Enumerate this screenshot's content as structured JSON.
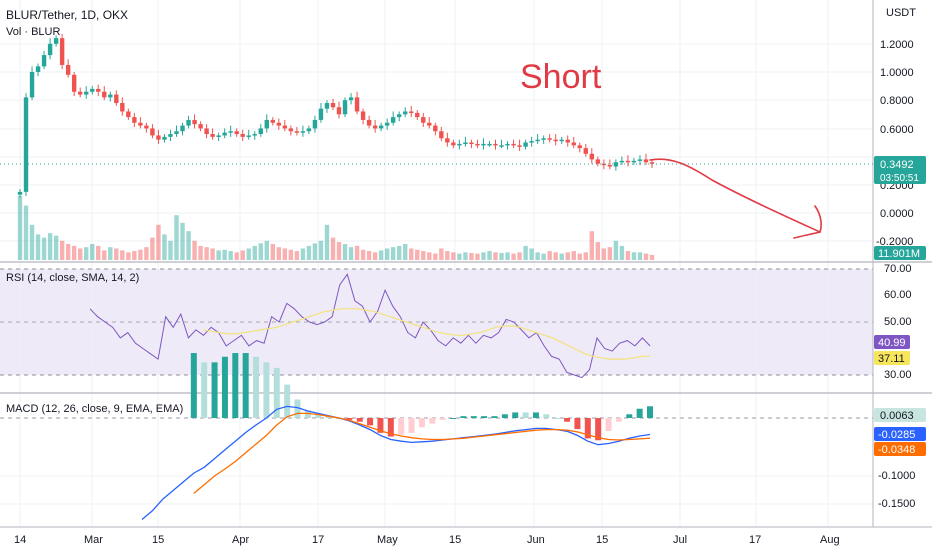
{
  "header": {
    "symbol_title": "BLUR/Tether, 1D, OKX",
    "volume_label": "Vol · BLUR",
    "currency": "USDT"
  },
  "annotation": {
    "text": "Short",
    "color": "#e03a44"
  },
  "price_axis": {
    "ticks": [
      "1.2000",
      "1.0000",
      "0.8000",
      "0.6000",
      "0.2000",
      "0.0000",
      "-0.2000"
    ],
    "last_price": "0.3492",
    "countdown": "03:50:51",
    "volume_value": "11.901M"
  },
  "rsi": {
    "label": "RSI (14, close, SMA, 14, 2)",
    "ticks": [
      "70.00",
      "60.00",
      "50.00",
      "30.00"
    ],
    "value": "40.99",
    "sma_value": "37.11"
  },
  "macd": {
    "label": "MACD (12, 26, close, 9, EMA, EMA)",
    "ticks": [
      "-0.1000",
      "-0.1500"
    ],
    "histogram_value": "0.0063",
    "macd_value": "-0.0285",
    "signal_value": "-0.0348"
  },
  "time_axis": {
    "labels": [
      "14",
      "Mar",
      "15",
      "Apr",
      "17",
      "May",
      "15",
      "Jun",
      "15",
      "Jul",
      "17",
      "Aug"
    ]
  },
  "colors": {
    "up": "#26a69a",
    "down": "#ef5350",
    "rsi_line": "#7e57c2",
    "rsi_sma": "#f3e37c",
    "macd_line": "#2962ff",
    "signal_line": "#ff6d00",
    "price_badge": "#26a69a",
    "volume_badge": "#26a69a"
  },
  "chart_data": {
    "type": "candlestick",
    "price_series": {
      "close": [
        0.15,
        0.82,
        1.0,
        1.04,
        1.12,
        1.2,
        1.24,
        1.05,
        0.98,
        0.86,
        0.84,
        0.86,
        0.88,
        0.86,
        0.82,
        0.84,
        0.78,
        0.72,
        0.68,
        0.64,
        0.62,
        0.6,
        0.55,
        0.52,
        0.54,
        0.56,
        0.58,
        0.62,
        0.66,
        0.63,
        0.6,
        0.56,
        0.54,
        0.55,
        0.57,
        0.58,
        0.56,
        0.54,
        0.55,
        0.56,
        0.6,
        0.66,
        0.64,
        0.62,
        0.6,
        0.58,
        0.57,
        0.58,
        0.6,
        0.66,
        0.74,
        0.78,
        0.75,
        0.7,
        0.8,
        0.82,
        0.72,
        0.66,
        0.62,
        0.6,
        0.62,
        0.64,
        0.68,
        0.7,
        0.72,
        0.71,
        0.68,
        0.64,
        0.62,
        0.58,
        0.53,
        0.5,
        0.48,
        0.49,
        0.5,
        0.49,
        0.48,
        0.49,
        0.49,
        0.48,
        0.48,
        0.49,
        0.48,
        0.47,
        0.5,
        0.51,
        0.52,
        0.53,
        0.52,
        0.51,
        0.52,
        0.5,
        0.48,
        0.46,
        0.42,
        0.38,
        0.35,
        0.34,
        0.33,
        0.36,
        0.37,
        0.36,
        0.37,
        0.38,
        0.36,
        0.3492
      ]
    },
    "volume": [
      1.0,
      0.85,
      0.55,
      0.4,
      0.35,
      0.42,
      0.38,
      0.3,
      0.25,
      0.22,
      0.18,
      0.2,
      0.25,
      0.22,
      0.15,
      0.2,
      0.18,
      0.15,
      0.12,
      0.14,
      0.16,
      0.2,
      0.35,
      0.55,
      0.4,
      0.3,
      0.7,
      0.58,
      0.45,
      0.3,
      0.22,
      0.2,
      0.18,
      0.15,
      0.16,
      0.14,
      0.12,
      0.15,
      0.18,
      0.22,
      0.26,
      0.3,
      0.25,
      0.2,
      0.18,
      0.16,
      0.14,
      0.18,
      0.22,
      0.26,
      0.3,
      0.55,
      0.35,
      0.28,
      0.25,
      0.2,
      0.22,
      0.16,
      0.14,
      0.12,
      0.15,
      0.18,
      0.2,
      0.22,
      0.25,
      0.18,
      0.16,
      0.14,
      0.12,
      0.1,
      0.18,
      0.14,
      0.12,
      0.1,
      0.12,
      0.11,
      0.1,
      0.12,
      0.14,
      0.12,
      0.11,
      0.12,
      0.1,
      0.12,
      0.22,
      0.18,
      0.12,
      0.1,
      0.14,
      0.12,
      0.1,
      0.12,
      0.14,
      0.1,
      0.12,
      0.45,
      0.28,
      0.18,
      0.2,
      0.3,
      0.22,
      0.14,
      0.12,
      0.12,
      0.1,
      0.08
    ],
    "rsi_series": [
      55,
      52,
      50,
      48,
      44,
      46,
      42,
      40,
      38,
      36,
      52,
      48,
      53,
      44,
      47,
      45,
      48,
      46,
      41,
      43,
      45,
      41,
      43,
      42,
      52,
      50,
      57,
      55,
      52,
      50,
      49,
      50,
      52,
      64,
      68,
      58,
      56,
      50,
      54,
      62,
      56,
      52,
      46,
      44,
      50,
      47,
      43,
      41,
      44,
      42,
      45,
      42,
      45,
      44,
      46,
      51,
      50,
      47,
      44,
      46,
      41,
      37,
      36,
      31,
      30,
      29,
      32,
      44,
      40,
      39,
      42,
      43,
      41,
      44,
      40.99
    ],
    "rsi_sma_series": [
      null,
      null,
      null,
      null,
      null,
      null,
      null,
      null,
      null,
      null,
      null,
      null,
      null,
      null,
      47,
      46.5,
      46,
      45.5,
      45.5,
      46,
      46.5,
      47,
      47.5,
      48,
      49,
      50,
      51,
      52,
      53,
      54,
      54.5,
      55,
      55,
      55,
      54.5,
      54,
      53,
      52,
      51,
      50,
      49,
      48,
      47,
      46,
      45.5,
      45,
      45,
      45.5,
      46,
      47,
      48,
      48.5,
      48.5,
      48,
      47,
      46,
      45,
      44,
      42.5,
      41,
      39.5,
      38,
      37,
      36.5,
      36,
      36,
      36,
      36.5,
      37,
      37.11
    ],
    "macd_series": [
      -0.175,
      -0.16,
      -0.14,
      -0.125,
      -0.11,
      -0.095,
      -0.085,
      -0.07,
      -0.055,
      -0.04,
      -0.025,
      -0.012,
      0.0,
      0.015,
      0.02,
      0.018,
      0.012,
      0.008,
      0.004,
      0.0,
      -0.005,
      -0.012,
      -0.02,
      -0.03,
      -0.037,
      -0.04,
      -0.042,
      -0.041,
      -0.04,
      -0.038,
      -0.036,
      -0.034,
      -0.032,
      -0.03,
      -0.028,
      -0.025,
      -0.022,
      -0.02,
      -0.018,
      -0.018,
      -0.02,
      -0.023,
      -0.03,
      -0.04,
      -0.046,
      -0.044,
      -0.04,
      -0.035,
      -0.031,
      -0.0285
    ],
    "signal_series": [
      null,
      null,
      null,
      null,
      null,
      -0.13,
      -0.115,
      -0.1,
      -0.088,
      -0.075,
      -0.06,
      -0.045,
      -0.03,
      -0.012,
      0.002,
      0.008,
      0.008,
      0.006,
      0.003,
      0.0,
      -0.004,
      -0.01,
      -0.016,
      -0.022,
      -0.027,
      -0.031,
      -0.034,
      -0.036,
      -0.037,
      -0.037,
      -0.036,
      -0.035,
      -0.033,
      -0.031,
      -0.029,
      -0.027,
      -0.025,
      -0.023,
      -0.021,
      -0.02,
      -0.02,
      -0.021,
      -0.024,
      -0.029,
      -0.034,
      -0.037,
      -0.038,
      -0.037,
      -0.036,
      -0.0348
    ],
    "macd_ylim": [
      -0.18,
      0.025
    ],
    "price_ylim": [
      -0.23,
      1.38
    ],
    "rsi_ylim": [
      25,
      72
    ]
  }
}
